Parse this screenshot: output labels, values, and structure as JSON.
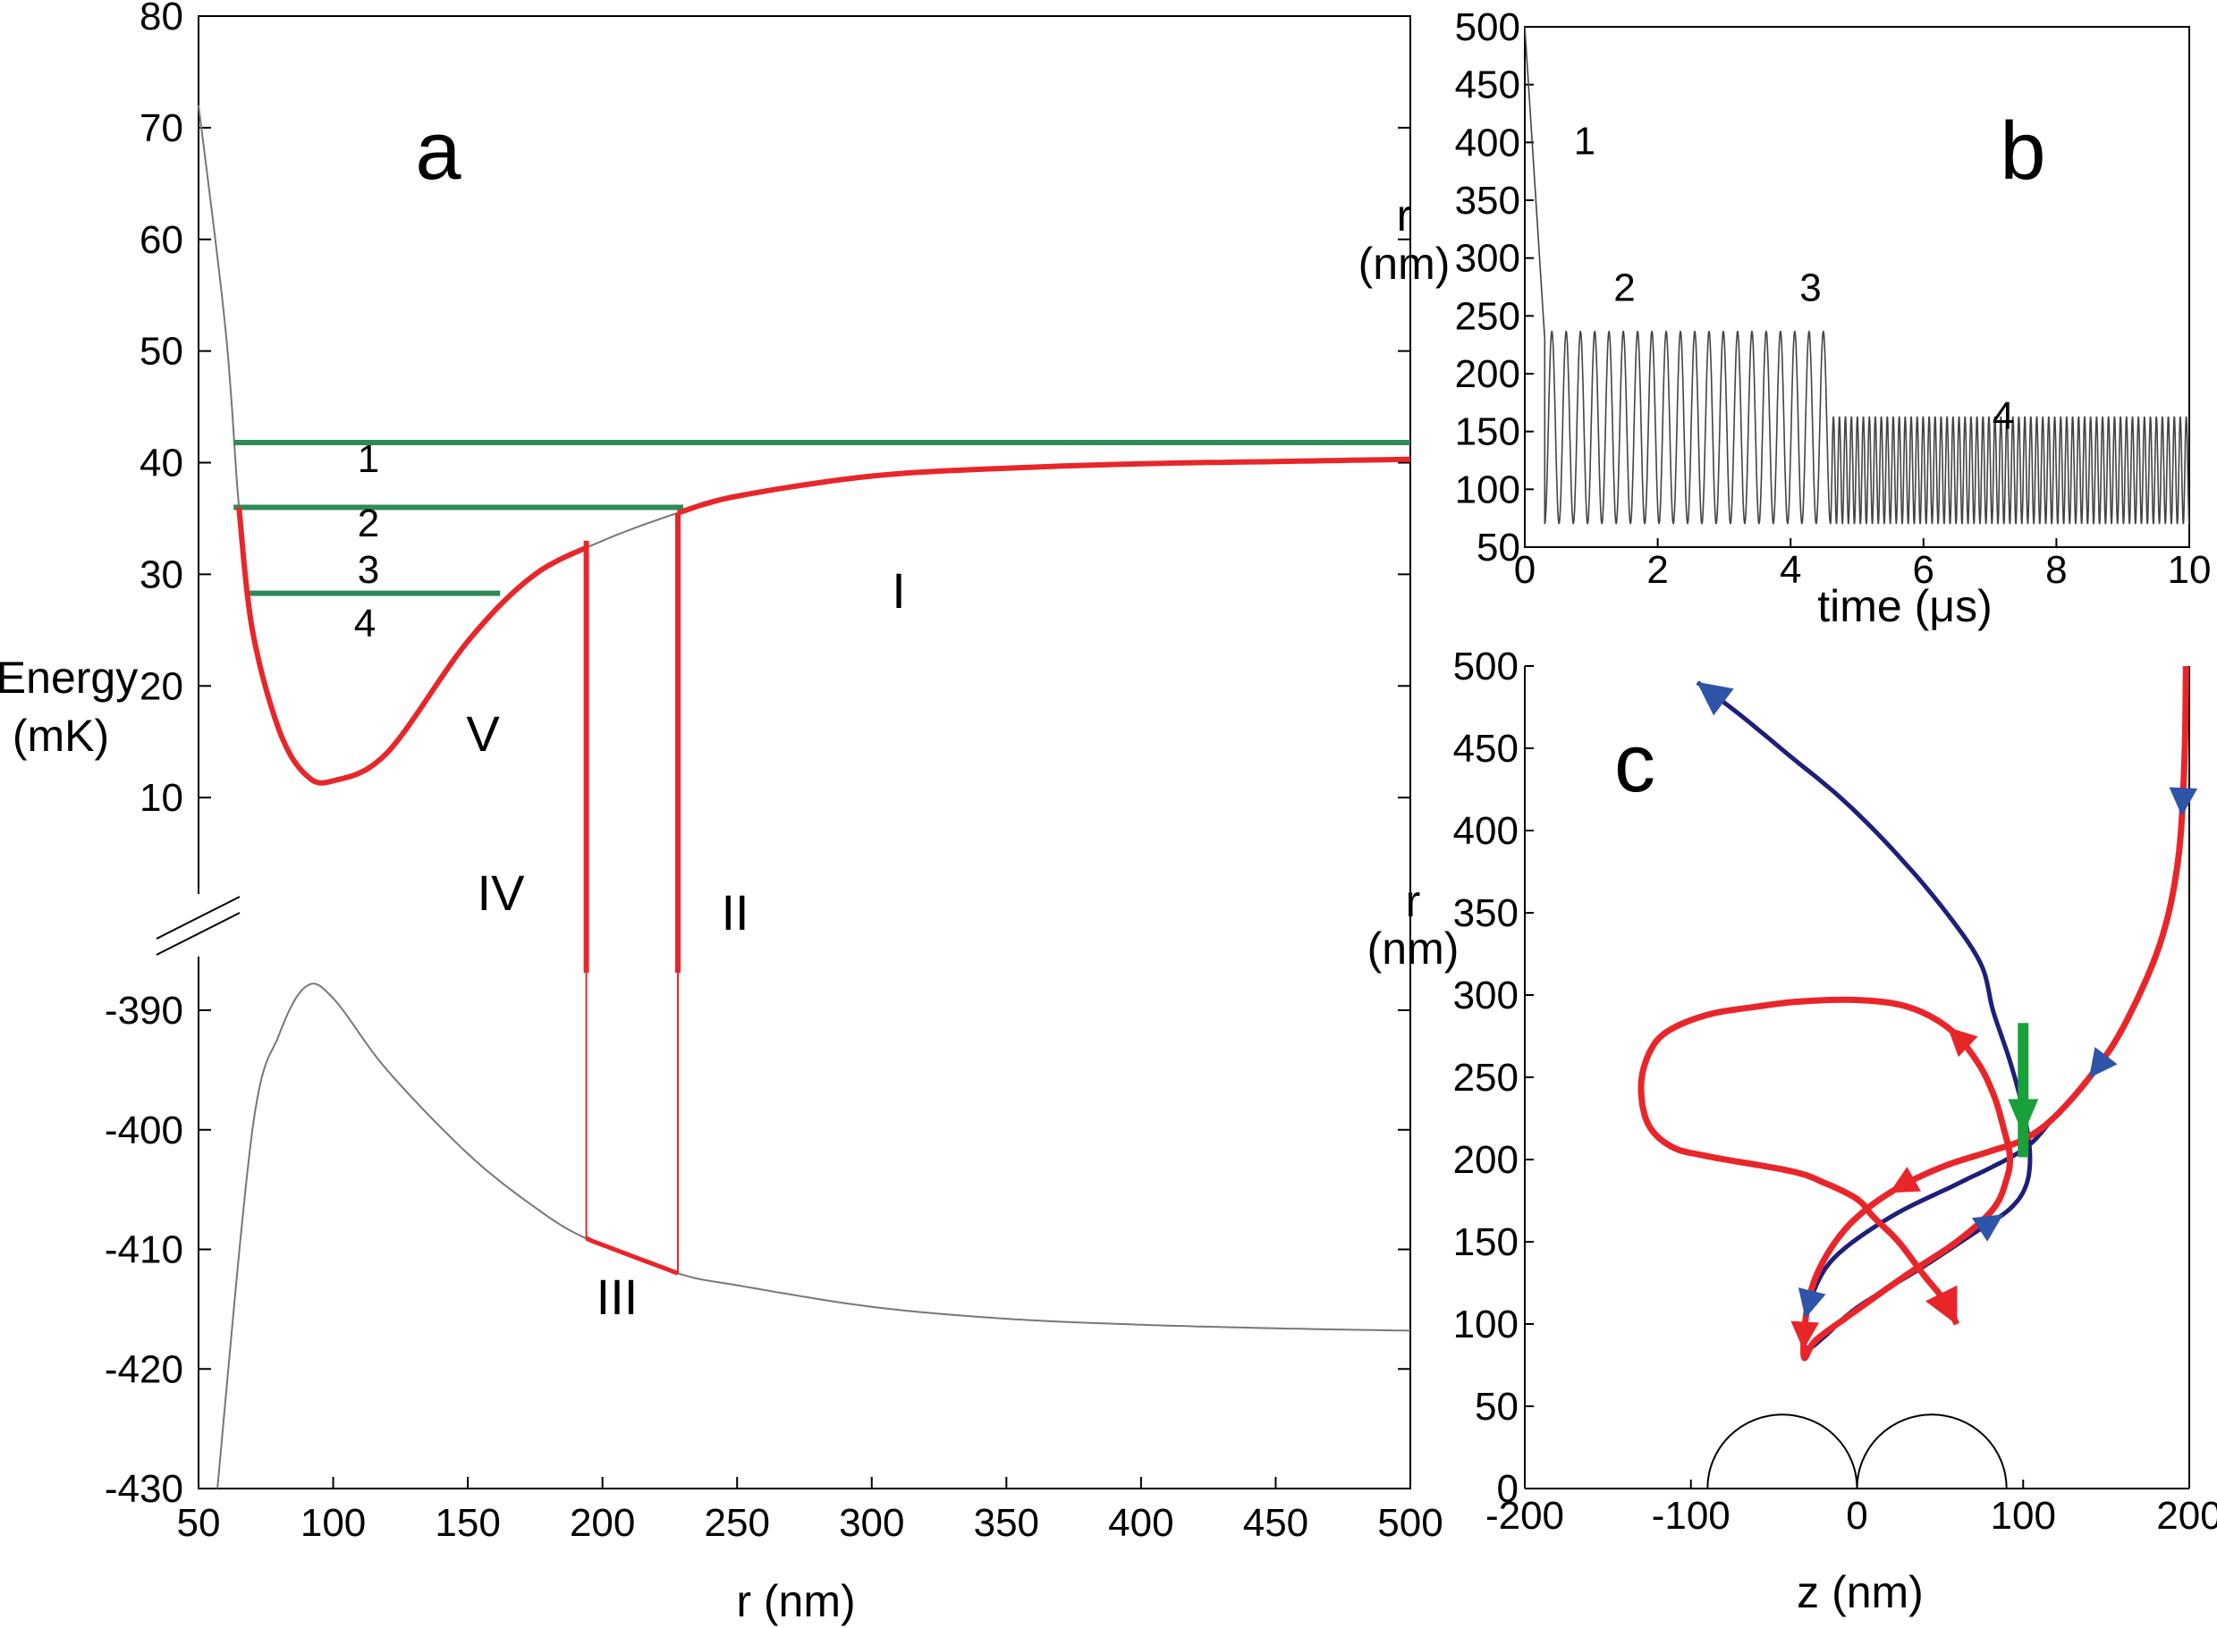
{
  "panel_a": {
    "letter": "a",
    "ylabel_line1": "Energy",
    "ylabel_line2": "(mK)",
    "xlabel": "r (nm)",
    "xticks": [
      "50",
      "100",
      "150",
      "200",
      "250",
      "300",
      "350",
      "400",
      "450",
      "500"
    ],
    "yticks_upper": [
      "80",
      "70",
      "60",
      "50",
      "40",
      "30",
      "20",
      "10"
    ],
    "yticks_lower": [
      "-390",
      "-400",
      "-410",
      "-420",
      "-430"
    ],
    "levels": [
      "1",
      "2",
      "3",
      "4"
    ],
    "regions": [
      "I",
      "II",
      "III",
      "IV",
      "V"
    ]
  },
  "panel_b": {
    "letter": "b",
    "ylabel_line1": "r",
    "ylabel_line2": "(nm)",
    "xlabel": "time (μs)",
    "xticks": [
      "0",
      "2",
      "4",
      "6",
      "8",
      "10"
    ],
    "yticks": [
      "500",
      "450",
      "400",
      "350",
      "300",
      "250",
      "200",
      "150",
      "100",
      "50"
    ],
    "stages": [
      "1",
      "2",
      "3",
      "4"
    ]
  },
  "panel_c": {
    "letter": "c",
    "ylabel_line1": "r",
    "ylabel_line2": "(nm)",
    "xlabel": "z (nm)",
    "xticks": [
      "-200",
      "-100",
      "0",
      "100",
      "200"
    ],
    "yticks": [
      "500",
      "450",
      "400",
      "350",
      "300",
      "250",
      "200",
      "150",
      "100",
      "50",
      "0"
    ]
  },
  "colors": {
    "red": "#e8262a",
    "green": "#2e8b57",
    "navy": "#1f1f7a",
    "blue_arrow": "#2f55a8",
    "green_arrow": "#1aa03a",
    "grey": "#777777"
  },
  "chart_data": [
    {
      "type": "line",
      "panel": "a",
      "title": "",
      "xlabel": "r (nm)",
      "ylabel": "Energy (mK)",
      "xlim": [
        50,
        500
      ],
      "ylim_upper": [
        0,
        80
      ],
      "ylim_lower": [
        -430,
        -385
      ],
      "broken_axis": true,
      "series": [
        {
          "name": "upper potential",
          "color": "#777777",
          "x": [
            50,
            60,
            65,
            70,
            80,
            90,
            100,
            120,
            150,
            175,
            200,
            228,
            250,
            300,
            350,
            400,
            450,
            500
          ],
          "y": [
            72,
            52,
            36,
            25,
            16,
            12,
            11.5,
            14,
            24,
            30,
            33,
            35.5,
            37,
            38.8,
            39.5,
            39.9,
            40.1,
            40.3
          ]
        },
        {
          "name": "lower potential",
          "color": "#777777",
          "x": [
            57,
            70,
            80,
            90,
            100,
            120,
            150,
            175,
            195,
            228,
            250,
            300,
            350,
            400,
            450,
            500
          ],
          "y": [
            -430,
            -400,
            -392,
            -388,
            -389,
            -395,
            -402,
            -406.5,
            -409.2,
            -412,
            -413,
            -414.8,
            -415.8,
            -416.3,
            -416.6,
            -416.8
          ]
        },
        {
          "name": "levels",
          "color": "#2e8b57",
          "values": [
            {
              "label": "1",
              "y": 41.8,
              "xrange": [
                63,
                500
              ]
            },
            {
              "label": "2",
              "y": 36,
              "xrange": [
                63,
                230
              ]
            },
            {
              "label": "4",
              "y": 28.3,
              "xrange": [
                68,
                162
              ]
            }
          ]
        }
      ],
      "regions": [
        "I",
        "II",
        "III",
        "IV",
        "V"
      ]
    },
    {
      "type": "line",
      "panel": "b",
      "title": "",
      "xlabel": "time (μs)",
      "ylabel": "r (nm)",
      "xlim": [
        0,
        10
      ],
      "ylim": [
        50,
        500
      ],
      "series": [
        {
          "name": "r(t)",
          "segments": [
            {
              "t": [
                0,
                0.3
              ],
              "r": [
                500,
                230
              ]
            },
            {
              "t_range": [
                0.3,
                4.6
              ],
              "r_min": 70,
              "r_max": 237,
              "cycles": 20
            },
            {
              "t_range": [
                4.6,
                10
              ],
              "r_min": 70,
              "r_max": 163,
              "cycles": 60
            }
          ]
        }
      ],
      "annotations": [
        {
          "text": "1",
          "t": 0.9,
          "r": 390
        },
        {
          "text": "2",
          "t": 1.5,
          "r": 263
        },
        {
          "text": "3",
          "t": 4.3,
          "r": 263
        },
        {
          "text": "4",
          "t": 7.2,
          "r": 152
        }
      ]
    },
    {
      "type": "line",
      "panel": "c",
      "title": "",
      "xlabel": "z (nm)",
      "ylabel": "r (nm)",
      "xlim": [
        -200,
        200
      ],
      "ylim": [
        0,
        500
      ],
      "series": [
        {
          "name": "incoming trajectory",
          "color": "#1f1f7a",
          "x": [
            198,
            197,
            193,
            182,
            160,
            140,
            118,
            105,
            90,
            60,
            20,
            -14,
            -28,
            -32,
            -30,
            -20,
            0,
            40,
            70,
            92,
            102,
            104,
            100,
            92,
            82,
            74,
            50,
            20,
            -10,
            -40,
            -70,
            -96
          ],
          "y": [
            500,
            440,
            380,
            330,
            280,
            250,
            225,
            210,
            200,
            185,
            165,
            140,
            115,
            95,
            85,
            92,
            110,
            135,
            155,
            170,
            185,
            205,
            230,
            260,
            290,
            320,
            355,
            390,
            420,
            445,
            470,
            490
          ]
        },
        {
          "name": "captured trajectory",
          "color": "#e8262a",
          "x": [
            198,
            197,
            193,
            182,
            160,
            140,
            118,
            100,
            80,
            50,
            20,
            -5,
            -22,
            -30,
            -32,
            -25,
            -5,
            30,
            60,
            82,
            90,
            92,
            88,
            82,
            72,
            55,
            30,
            -1,
            -35,
            -60,
            -90,
            -114,
            -125,
            -130,
            -126,
            -112,
            -90,
            -40,
            -20,
            0,
            10,
            25,
            40,
            52,
            60
          ],
          "y": [
            500,
            440,
            380,
            330,
            280,
            250,
            225,
            212,
            205,
            195,
            180,
            160,
            135,
            110,
            80,
            90,
            105,
            130,
            150,
            170,
            188,
            202,
            220,
            240,
            260,
            280,
            293,
            297,
            296,
            293,
            288,
            278,
            265,
            245,
            222,
            208,
            202,
            193,
            186,
            176,
            165,
            150,
            130,
            115,
            100
          ]
        }
      ],
      "lobes": [
        {
          "center": -45,
          "radius": 45
        },
        {
          "center": 45,
          "radius": 45
        }
      ]
    }
  ]
}
